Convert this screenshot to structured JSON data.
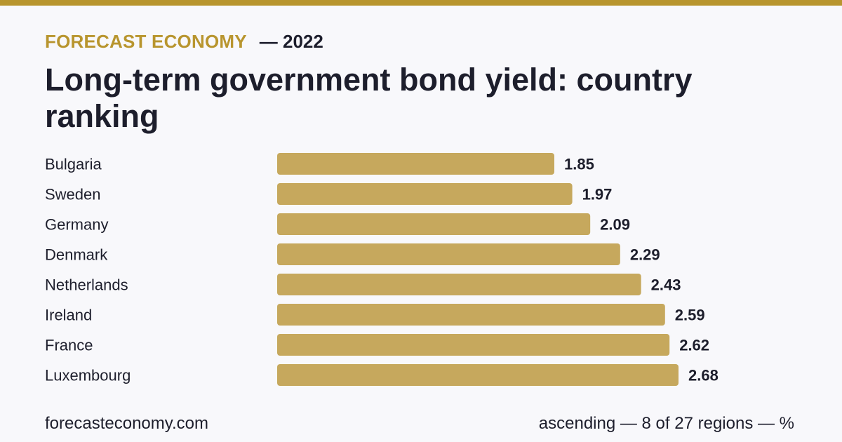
{
  "header": {
    "brand": "FORECAST ECONOMY",
    "year": "— 2022",
    "title": "Long-term government bond yield: country ranking"
  },
  "footer": {
    "site": "forecasteconomy.com",
    "note": "ascending — 8 of 27 regions — %"
  },
  "colors": {
    "accent": "#b8952e",
    "bar": "#c6a85d",
    "text": "#1d1e2c",
    "background": "#f8f8fb"
  },
  "chart_data": {
    "type": "bar",
    "orientation": "horizontal",
    "categories": [
      "Bulgaria",
      "Sweden",
      "Germany",
      "Denmark",
      "Netherlands",
      "Ireland",
      "France",
      "Luxembourg"
    ],
    "values": [
      1.85,
      1.97,
      2.09,
      2.29,
      2.43,
      2.59,
      2.62,
      2.68
    ],
    "value_labels": [
      "1.85",
      "1.97",
      "2.09",
      "2.29",
      "2.43",
      "2.59",
      "2.62",
      "2.68"
    ],
    "title": "Long-term government bond yield: country ranking",
    "xlabel": "",
    "ylabel": "",
    "grid": false,
    "legend": "none"
  }
}
